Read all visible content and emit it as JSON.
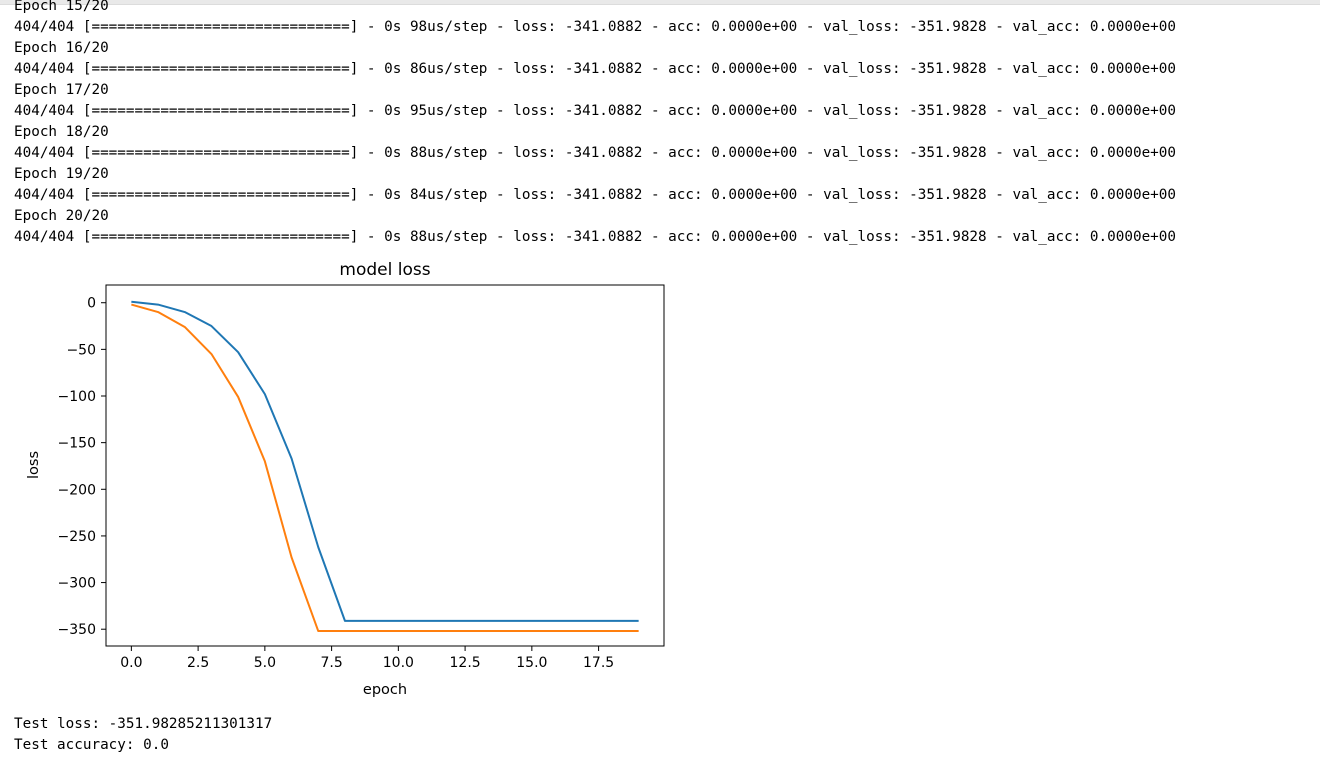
{
  "log_lines": [
    "Epoch 15/20",
    "404/404 [==============================] - 0s 98us/step - loss: -341.0882 - acc: 0.0000e+00 - val_loss: -351.9828 - val_acc: 0.0000e+00",
    "Epoch 16/20",
    "404/404 [==============================] - 0s 86us/step - loss: -341.0882 - acc: 0.0000e+00 - val_loss: -351.9828 - val_acc: 0.0000e+00",
    "Epoch 17/20",
    "404/404 [==============================] - 0s 95us/step - loss: -341.0882 - acc: 0.0000e+00 - val_loss: -351.9828 - val_acc: 0.0000e+00",
    "Epoch 18/20",
    "404/404 [==============================] - 0s 88us/step - loss: -341.0882 - acc: 0.0000e+00 - val_loss: -351.9828 - val_acc: 0.0000e+00",
    "Epoch 19/20",
    "404/404 [==============================] - 0s 84us/step - loss: -341.0882 - acc: 0.0000e+00 - val_loss: -351.9828 - val_acc: 0.0000e+00",
    "Epoch 20/20",
    "404/404 [==============================] - 0s 88us/step - loss: -341.0882 - acc: 0.0000e+00 - val_loss: -351.9828 - val_acc: 0.0000e+00"
  ],
  "chart_data": {
    "type": "line",
    "title": "model loss",
    "xlabel": "epoch",
    "ylabel": "loss",
    "xlim": [
      -0.95,
      19.95
    ],
    "ylim": [
      -368,
      19
    ],
    "xticks": [
      0.0,
      2.5,
      5.0,
      7.5,
      10.0,
      12.5,
      15.0,
      17.5
    ],
    "xtick_labels": [
      "0.0",
      "2.5",
      "5.0",
      "7.5",
      "10.0",
      "12.5",
      "15.0",
      "17.5"
    ],
    "yticks": [
      0,
      -50,
      -100,
      -150,
      -200,
      -250,
      -300,
      -350
    ],
    "ytick_labels": [
      "0",
      "−50",
      "−100",
      "−150",
      "−200",
      "−250",
      "−300",
      "−350"
    ],
    "grid": false,
    "legend": false,
    "x": [
      0,
      1,
      2,
      3,
      4,
      5,
      6,
      7,
      8,
      9,
      10,
      11,
      12,
      13,
      14,
      15,
      16,
      17,
      18,
      19
    ],
    "series": [
      {
        "color": "#1f77b4",
        "values": [
          1,
          -2,
          -10,
          -25,
          -53,
          -98,
          -167,
          -262,
          -341.0882,
          -341.0882,
          -341.0882,
          -341.0882,
          -341.0882,
          -341.0882,
          -341.0882,
          -341.0882,
          -341.0882,
          -341.0882,
          -341.0882,
          -341.0882
        ]
      },
      {
        "color": "#ff7f0e",
        "values": [
          -2,
          -10,
          -26,
          -55,
          -101,
          -170,
          -273,
          -351.9828,
          -351.9828,
          -351.9828,
          -351.9828,
          -351.9828,
          -351.9828,
          -351.9828,
          -351.9828,
          -351.9828,
          -351.9828,
          -351.9828,
          -351.9828,
          -351.9828
        ]
      }
    ]
  },
  "test_output": {
    "loss_line": "Test loss: -351.98285211301317",
    "accuracy_line": "Test accuracy: 0.0"
  }
}
